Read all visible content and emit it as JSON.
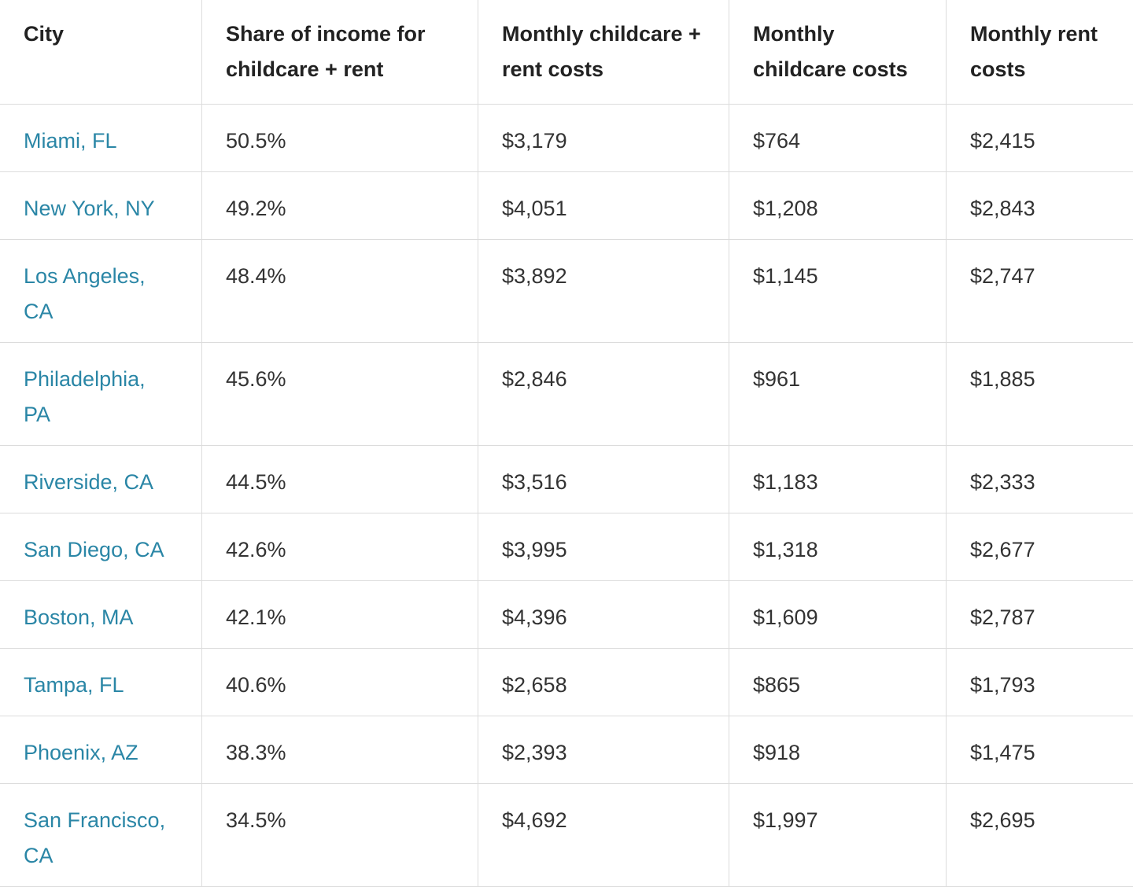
{
  "table": {
    "header": [
      "City",
      "Share of income for childcare + rent",
      "Monthly childcare + rent costs",
      "Monthly childcare costs",
      "Monthly rent costs"
    ],
    "rows": [
      [
        "Miami, FL",
        "50.5%",
        "$3,179",
        "$764",
        "$2,415"
      ],
      [
        "New York, NY",
        "49.2%",
        "$4,051",
        "$1,208",
        "$2,843"
      ],
      [
        "Los Angeles, CA",
        "48.4%",
        "$3,892",
        "$1,145",
        "$2,747"
      ],
      [
        "Philadelphia, PA",
        "45.6%",
        "$2,846",
        "$961",
        "$1,885"
      ],
      [
        "Riverside, CA",
        "44.5%",
        "$3,516",
        "$1,183",
        "$2,333"
      ],
      [
        "San Diego, CA",
        "42.6%",
        "$3,995",
        "$1,318",
        "$2,677"
      ],
      [
        "Boston, MA",
        "42.1%",
        "$4,396",
        "$1,609",
        "$2,787"
      ],
      [
        "Tampa, FL",
        "40.6%",
        "$2,658",
        "$865",
        "$1,793"
      ],
      [
        "Phoenix, AZ",
        "38.3%",
        "$2,393",
        "$918",
        "$1,475"
      ],
      [
        "San Francisco, CA",
        "34.5%",
        "$4,692",
        "$1,997",
        "$2,695"
      ]
    ]
  }
}
